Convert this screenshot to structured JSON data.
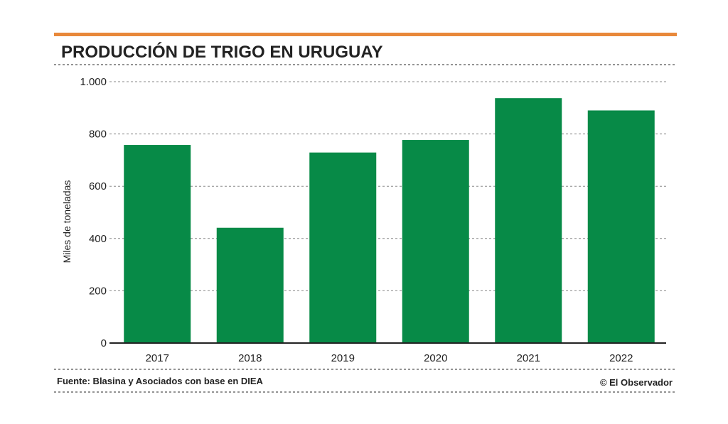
{
  "chart_data": {
    "type": "bar",
    "title": "PRODUCCIÓN DE TRIGO EN URUGUAY",
    "ylabel": "Miles de toneladas",
    "xlabel": "",
    "categories": [
      "2017",
      "2018",
      "2019",
      "2020",
      "2021",
      "2022"
    ],
    "values": [
      758,
      441,
      729,
      777,
      937,
      890
    ],
    "ylim": [
      0,
      1000
    ],
    "yticks": [
      0,
      200,
      400,
      600,
      800,
      1000
    ],
    "ytick_labels": [
      "0",
      "200",
      "400",
      "600",
      "800",
      "1.000"
    ],
    "grid": true,
    "source": "Fuente: Blasina y Asociados con base en DIEA",
    "credit": "© El Observador"
  },
  "colors": {
    "accent": "#e8883a",
    "bar": "#078a47",
    "text": "#222222",
    "grid": "#888888",
    "dotted_rule": "#555555"
  }
}
